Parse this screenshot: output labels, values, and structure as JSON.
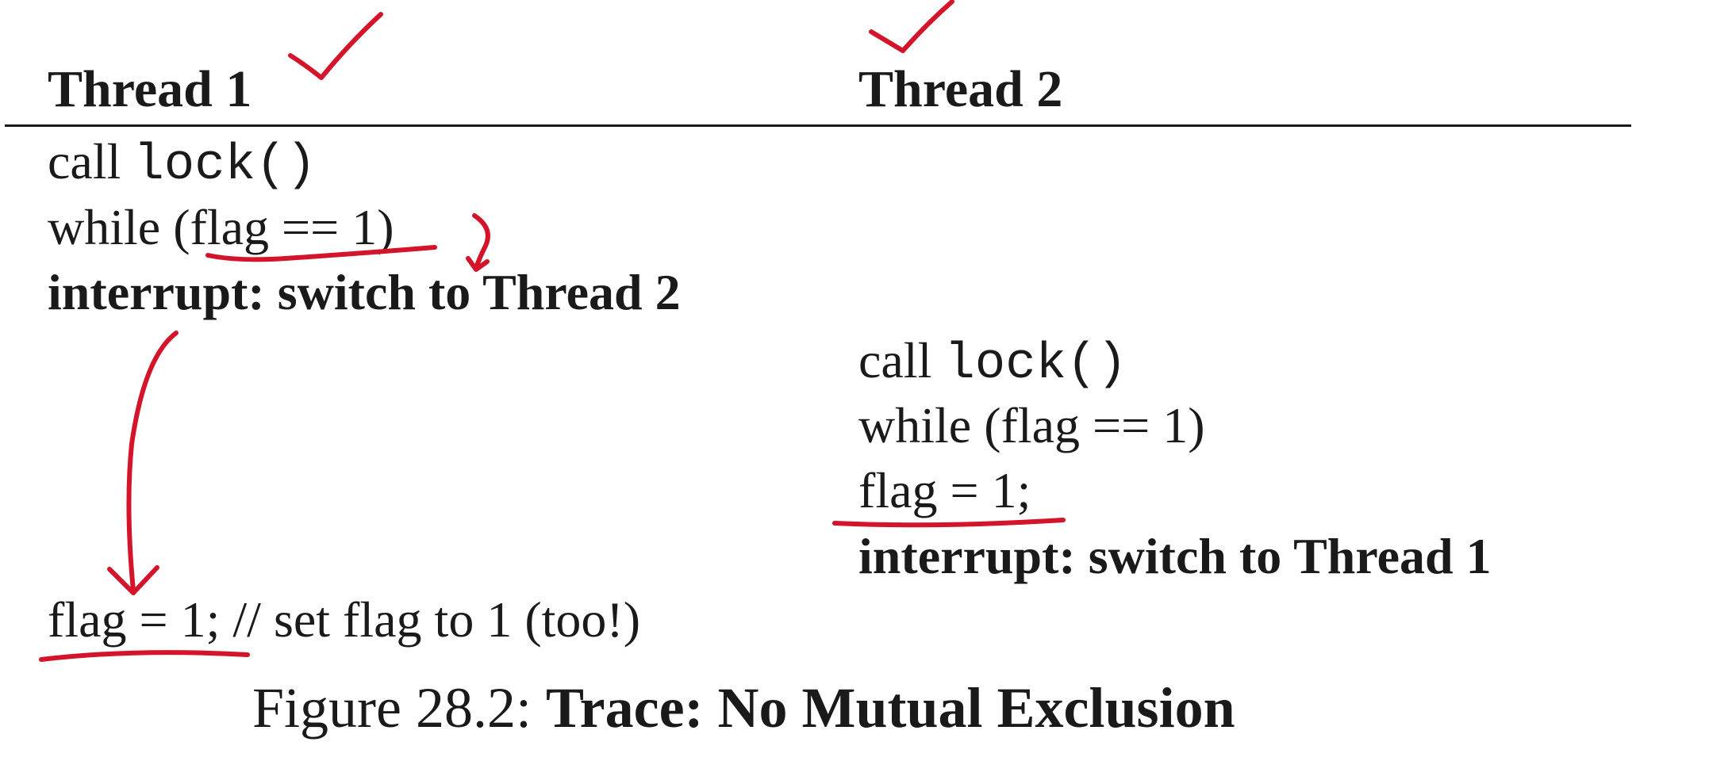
{
  "table": {
    "headers": {
      "thread1": "Thread 1",
      "thread2": "Thread 2"
    },
    "thread1": {
      "call_word": "call",
      "call_fn": "lock()",
      "while_line": "while (flag == 1)",
      "interrupt": "interrupt: switch to Thread 2",
      "set_code": "flag = 1;",
      "set_comment": "// set flag to 1 (too!)"
    },
    "thread2": {
      "call_word": "call",
      "call_fn": "lock()",
      "while_line": "while (flag == 1)",
      "set_code": "flag = 1;",
      "interrupt": "interrupt: switch to Thread 1"
    }
  },
  "caption": {
    "label": "Figure 28.2:",
    "title": "Trace: No Mutual Exclusion"
  },
  "annotations": {
    "ink_color": "#d4142a",
    "marks": [
      "checkmark-icon",
      "checkmark-icon",
      "underline",
      "curved-arrow-icon",
      "down-arrow-icon"
    ]
  }
}
